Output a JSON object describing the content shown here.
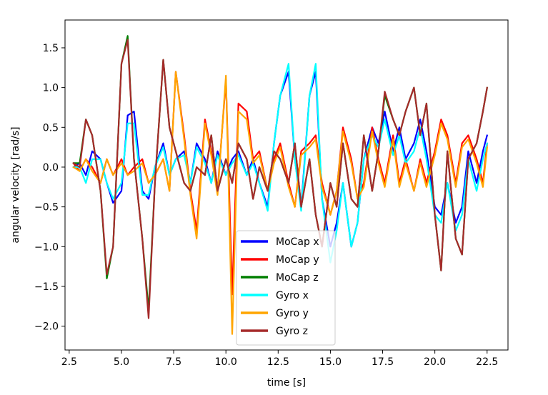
{
  "chart_data": {
    "type": "line",
    "xlabel": "time [s]",
    "ylabel": "angular velocity [rad/s]",
    "xlim": [
      2.3,
      23.5
    ],
    "ylim": [
      -2.3,
      1.85
    ],
    "xticks": [
      2.5,
      5.0,
      7.5,
      10.0,
      12.5,
      15.0,
      17.5,
      20.0,
      22.5
    ],
    "xtick_labels": [
      "2.5",
      "5.0",
      "7.5",
      "10.0",
      "12.5",
      "15.0",
      "17.5",
      "20.0",
      "22.5"
    ],
    "yticks": [
      1.5,
      1.0,
      0.5,
      0.0,
      -0.5,
      -1.0,
      -1.5,
      -2.0
    ],
    "ytick_labels": [
      "1.5",
      "1.0",
      "0.5",
      "0.0",
      "−0.5",
      "−1.0",
      "−1.5",
      "−2.0"
    ],
    "legend_position": "lower-center",
    "x": [
      2.7,
      3.0,
      3.3,
      3.6,
      4.0,
      4.3,
      4.6,
      5.0,
      5.3,
      5.6,
      6.0,
      6.3,
      6.6,
      7.0,
      7.3,
      7.6,
      8.0,
      8.3,
      8.6,
      9.0,
      9.3,
      9.6,
      10.0,
      10.3,
      10.6,
      11.0,
      11.3,
      11.6,
      12.0,
      12.3,
      12.6,
      13.0,
      13.3,
      13.6,
      14.0,
      14.3,
      14.6,
      15.0,
      15.3,
      15.6,
      16.0,
      16.3,
      16.6,
      17.0,
      17.3,
      17.6,
      18.0,
      18.3,
      18.6,
      19.0,
      19.3,
      19.6,
      20.0,
      20.3,
      20.6,
      21.0,
      21.3,
      21.6,
      22.0,
      22.3,
      22.5
    ],
    "series": [
      {
        "name": "MoCap x",
        "color": "#0000ff",
        "width": 2.2,
        "values": [
          0.0,
          0.05,
          -0.1,
          0.2,
          0.1,
          -0.2,
          -0.45,
          -0.3,
          0.65,
          0.7,
          -0.3,
          -0.4,
          0.0,
          0.3,
          -0.1,
          0.1,
          0.2,
          -0.2,
          0.3,
          0.1,
          -0.2,
          0.2,
          -0.1,
          0.1,
          0.2,
          -0.1,
          0.1,
          -0.2,
          -0.5,
          0.3,
          0.9,
          1.2,
          0.1,
          -0.5,
          0.9,
          1.2,
          -0.4,
          -1.0,
          -0.7,
          -0.2,
          -1.0,
          -0.7,
          0.1,
          0.5,
          0.3,
          0.7,
          0.2,
          0.5,
          0.1,
          0.3,
          0.6,
          0.2,
          -0.5,
          -0.6,
          -0.2,
          -0.7,
          -0.5,
          0.2,
          -0.2,
          0.2,
          0.4
        ]
      },
      {
        "name": "MoCap y",
        "color": "#ff0000",
        "width": 2.2,
        "values": [
          0.05,
          -0.05,
          0.1,
          0.0,
          -0.2,
          0.1,
          -0.1,
          0.1,
          -0.1,
          0.0,
          0.1,
          -0.2,
          -0.1,
          0.1,
          -0.3,
          1.2,
          0.4,
          -0.3,
          -0.8,
          0.6,
          0.2,
          -0.3,
          1.1,
          -1.6,
          0.8,
          0.7,
          0.1,
          0.2,
          -0.3,
          0.1,
          0.3,
          -0.2,
          -0.5,
          0.2,
          0.3,
          0.4,
          -0.2,
          -0.6,
          -0.3,
          0.5,
          0.1,
          -0.4,
          -0.2,
          0.5,
          0.1,
          -0.2,
          0.4,
          -0.2,
          0.1,
          -0.3,
          0.1,
          -0.2,
          0.2,
          0.6,
          0.4,
          -0.2,
          0.3,
          0.4,
          0.1,
          -0.2,
          0.3
        ]
      },
      {
        "name": "MoCap z",
        "color": "#007f00",
        "width": 2.2,
        "values": [
          0.05,
          0.05,
          0.6,
          0.4,
          -0.3,
          -1.4,
          -1.0,
          1.3,
          1.65,
          0.1,
          -0.9,
          -1.8,
          -0.2,
          1.35,
          0.5,
          0.2,
          -0.2,
          -0.3,
          0.0,
          -0.1,
          0.4,
          -0.3,
          0.1,
          -0.2,
          0.3,
          0.1,
          -0.4,
          0.0,
          -0.3,
          0.2,
          0.1,
          -0.2,
          0.3,
          -0.5,
          0.1,
          -0.6,
          -1.0,
          -0.2,
          -0.5,
          0.3,
          -0.4,
          -0.5,
          0.4,
          -0.3,
          0.2,
          0.9,
          0.6,
          0.4,
          0.7,
          1.0,
          0.4,
          0.8,
          -0.6,
          -1.3,
          0.2,
          -0.9,
          -1.1,
          0.1,
          0.3,
          0.7,
          1.0
        ]
      },
      {
        "name": "Gyro x",
        "color": "#00ffff",
        "width": 2.2,
        "values": [
          0.0,
          0.0,
          -0.2,
          0.1,
          0.1,
          -0.2,
          -0.4,
          -0.2,
          0.55,
          0.55,
          -0.35,
          -0.35,
          0.0,
          0.25,
          -0.1,
          0.1,
          0.15,
          -0.2,
          0.25,
          0.05,
          -0.2,
          0.15,
          -0.1,
          0.05,
          0.15,
          -0.1,
          0.05,
          -0.2,
          -0.55,
          0.3,
          0.9,
          1.3,
          0.1,
          -0.55,
          0.9,
          1.3,
          -0.4,
          -1.2,
          -0.8,
          -0.2,
          -1.0,
          -0.7,
          0.1,
          0.4,
          0.25,
          0.6,
          0.15,
          0.4,
          0.05,
          0.2,
          0.5,
          0.1,
          -0.6,
          -0.7,
          -0.2,
          -0.8,
          -0.6,
          0.1,
          -0.3,
          0.1,
          0.3
        ]
      },
      {
        "name": "Gyro y",
        "color": "#ffa500",
        "width": 2.2,
        "values": [
          0.0,
          -0.05,
          0.1,
          -0.05,
          -0.2,
          0.1,
          -0.1,
          0.05,
          -0.1,
          -0.05,
          0.05,
          -0.2,
          -0.1,
          0.1,
          -0.3,
          1.2,
          0.35,
          -0.35,
          -0.9,
          0.55,
          0.15,
          -0.35,
          1.15,
          -2.1,
          0.7,
          0.6,
          0.05,
          0.15,
          -0.3,
          0.05,
          0.25,
          -0.25,
          -0.5,
          0.15,
          0.25,
          0.35,
          -0.25,
          -0.6,
          -0.3,
          0.45,
          0.05,
          -0.4,
          -0.25,
          0.45,
          0.05,
          -0.25,
          0.35,
          -0.25,
          0.05,
          -0.3,
          0.05,
          -0.25,
          0.15,
          0.55,
          0.35,
          -0.25,
          0.25,
          0.35,
          0.05,
          -0.25,
          0.25
        ]
      },
      {
        "name": "Gyro z",
        "color": "#a52a2a",
        "width": 2.2,
        "values": [
          0.05,
          0.0,
          0.6,
          0.4,
          -0.3,
          -1.35,
          -1.0,
          1.3,
          1.6,
          0.1,
          -0.9,
          -1.9,
          -0.2,
          1.35,
          0.5,
          0.2,
          -0.2,
          -0.3,
          0.0,
          -0.1,
          0.4,
          -0.3,
          0.1,
          -0.2,
          0.3,
          0.1,
          -0.4,
          0.0,
          -0.3,
          0.2,
          0.1,
          -0.2,
          0.3,
          -0.5,
          0.1,
          -0.6,
          -1.0,
          -0.2,
          -0.5,
          0.3,
          -0.4,
          -0.5,
          0.4,
          -0.3,
          0.2,
          0.95,
          0.6,
          0.4,
          0.7,
          1.0,
          0.4,
          0.8,
          -0.6,
          -1.3,
          0.2,
          -0.9,
          -1.1,
          0.1,
          0.3,
          0.7,
          1.0
        ]
      }
    ]
  }
}
